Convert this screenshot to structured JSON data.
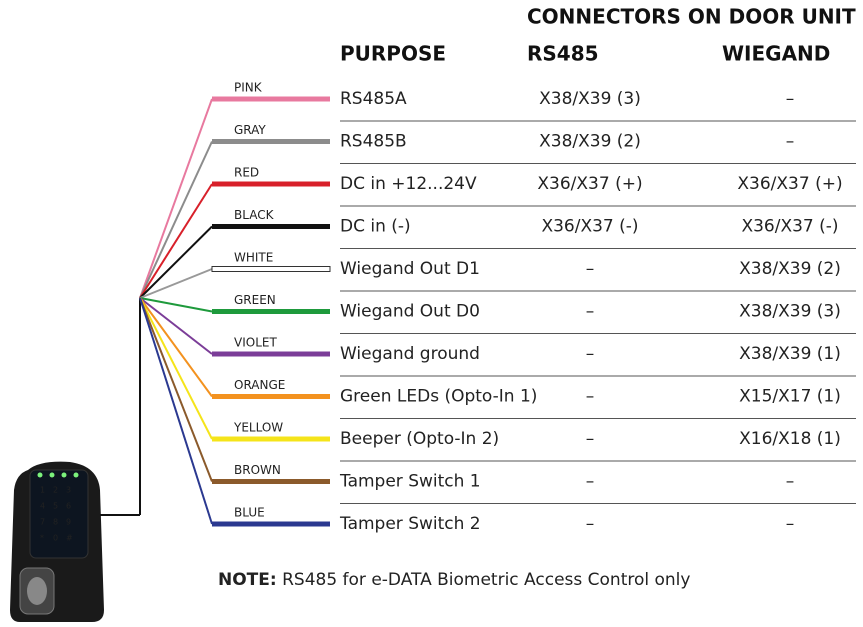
{
  "header": {
    "group": "CONNECTORS ON DOOR UNIT",
    "purpose": "PURPOSE",
    "rs485": "RS485",
    "wiegand": "WIEGAND"
  },
  "rows": [
    {
      "wire": "PINK",
      "color": "#e8799f",
      "purpose": "RS485A",
      "rs485": "X38/X39 (3)",
      "wiegand": "–"
    },
    {
      "wire": "GRAY",
      "color": "#8c8c8c",
      "purpose": "RS485B",
      "rs485": "X38/X39 (2)",
      "wiegand": "–"
    },
    {
      "wire": "RED",
      "color": "#d8202a",
      "purpose": "DC in +12...24V",
      "rs485": "X36/X37 (+)",
      "wiegand": "X36/X37 (+)"
    },
    {
      "wire": "BLACK",
      "color": "#111111",
      "purpose": "DC in (-)",
      "rs485": "X36/X37 (-)",
      "wiegand": "X36/X37 (-)"
    },
    {
      "wire": "WHITE",
      "color": "#ffffff",
      "purpose": "Wiegand Out D1",
      "rs485": "–",
      "wiegand": "X38/X39 (2)"
    },
    {
      "wire": "GREEN",
      "color": "#1e9a3c",
      "purpose": "Wiegand Out D0",
      "rs485": "–",
      "wiegand": "X38/X39 (3)"
    },
    {
      "wire": "VIOLET",
      "color": "#7b3d98",
      "purpose": "Wiegand ground",
      "rs485": "–",
      "wiegand": "X38/X39 (1)"
    },
    {
      "wire": "ORANGE",
      "color": "#f3921f",
      "purpose": "Green LEDs (Opto-In 1)",
      "rs485": "–",
      "wiegand": "X15/X17 (1)"
    },
    {
      "wire": "YELLOW",
      "color": "#f5e41a",
      "purpose": "Beeper (Opto-In 2)",
      "rs485": "–",
      "wiegand": "X16/X18 (1)"
    },
    {
      "wire": "BROWN",
      "color": "#8b5a2b",
      "purpose": "Tamper Switch 1",
      "rs485": "–",
      "wiegand": "–"
    },
    {
      "wire": "BLUE",
      "color": "#2b3990",
      "purpose": "Tamper Switch 2",
      "rs485": "–",
      "wiegand": "–"
    }
  ],
  "note": {
    "label": "NOTE:",
    "text": "RS485 for e-DATA Biometric Access Control only"
  }
}
